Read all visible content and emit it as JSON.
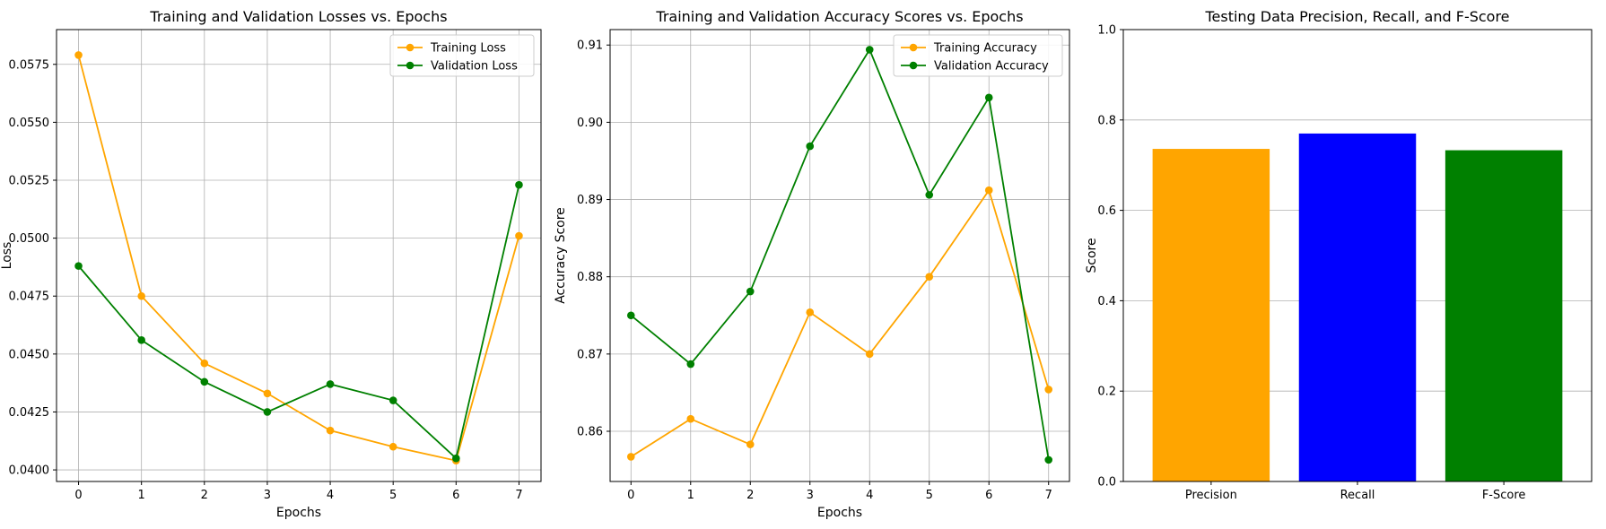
{
  "chart_data": [
    {
      "type": "line",
      "title": "Training and Validation Losses vs. Epochs",
      "xlabel": "Epochs",
      "ylabel": "Loss",
      "x": [
        0,
        1,
        2,
        3,
        4,
        5,
        6,
        7
      ],
      "xticks": [
        "0",
        "1",
        "2",
        "3",
        "4",
        "5",
        "6",
        "7"
      ],
      "xlim": [
        -0.35,
        7.35
      ],
      "ylim": [
        0.0395,
        0.059
      ],
      "yticks": [
        0.04,
        0.0425,
        0.045,
        0.0475,
        0.05,
        0.0525,
        0.055,
        0.0575
      ],
      "ytick_labels": [
        "0.0400",
        "0.0425",
        "0.0450",
        "0.0475",
        "0.0500",
        "0.0525",
        "0.0550",
        "0.0575"
      ],
      "grid": true,
      "legend": "upper-right",
      "series": [
        {
          "name": "Training Loss",
          "color": "#ffa500",
          "values": [
            0.0579,
            0.0475,
            0.0446,
            0.0433,
            0.0417,
            0.041,
            0.0404,
            0.0501
          ]
        },
        {
          "name": "Validation Loss",
          "color": "#008000",
          "values": [
            0.0488,
            0.0456,
            0.0438,
            0.0425,
            0.0437,
            0.043,
            0.0405,
            0.0523
          ]
        }
      ]
    },
    {
      "type": "line",
      "title": "Training and Validation Accuracy Scores vs. Epochs",
      "xlabel": "Epochs",
      "ylabel": "Accuracy Score",
      "x": [
        0,
        1,
        2,
        3,
        4,
        5,
        6,
        7
      ],
      "xticks": [
        "0",
        "1",
        "2",
        "3",
        "4",
        "5",
        "6",
        "7"
      ],
      "xlim": [
        -0.35,
        7.35
      ],
      "ylim": [
        0.8535,
        0.912
      ],
      "yticks": [
        0.86,
        0.87,
        0.88,
        0.89,
        0.9,
        0.91
      ],
      "ytick_labels": [
        "0.86",
        "0.87",
        "0.88",
        "0.89",
        "0.90",
        "0.91"
      ],
      "grid": true,
      "legend": "upper-right",
      "series": [
        {
          "name": "Training Accuracy",
          "color": "#ffa500",
          "values": [
            0.8567,
            0.8616,
            0.8583,
            0.8754,
            0.87,
            0.88,
            0.8912,
            0.8654
          ]
        },
        {
          "name": "Validation Accuracy",
          "color": "#008000",
          "values": [
            0.875,
            0.8687,
            0.8781,
            0.8969,
            0.9094,
            0.8906,
            0.9032,
            0.8563
          ]
        }
      ]
    },
    {
      "type": "bar",
      "title": "Testing Data Precision, Recall, and F-Score",
      "xlabel": "",
      "ylabel": "Score",
      "categories": [
        "Precision",
        "Recall",
        "F-Score"
      ],
      "values": [
        0.736,
        0.77,
        0.733
      ],
      "colors": [
        "#ffa500",
        "#0000ff",
        "#008000"
      ],
      "ylim": [
        0,
        1.0
      ],
      "yticks": [
        0,
        0.2,
        0.4,
        0.6,
        0.8,
        1.0
      ],
      "ytick_labels": [
        "0.0",
        "0.2",
        "0.4",
        "0.6",
        "0.8",
        "1.0"
      ],
      "grid": "y"
    }
  ]
}
